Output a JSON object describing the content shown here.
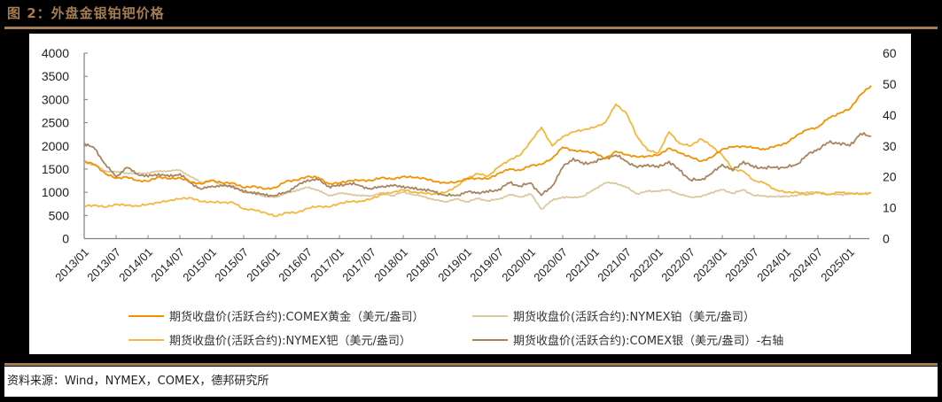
{
  "header": {
    "title": "图 2：外盘金银铂钯价格"
  },
  "footer": {
    "source": "资料来源：Wind，NYMEX，COMEX，德邦研究所"
  },
  "colors": {
    "gold": "#F39200",
    "platinum": "#DCC8A0",
    "palladium": "#F5B73B",
    "silver": "#A8855E",
    "accent": "#A67C52"
  },
  "chart_data": {
    "type": "line",
    "title": "外盘金银铂钯价格",
    "xlabel": "",
    "ylabel": "",
    "ylim": [
      0,
      4000
    ],
    "y2lim": [
      0,
      60
    ],
    "left_ticks": [
      "0",
      "500",
      "1000",
      "1500",
      "2000",
      "2500",
      "3000",
      "3500",
      "4000"
    ],
    "right_ticks": [
      "0",
      "10",
      "20",
      "30",
      "40",
      "50",
      "60"
    ],
    "x_tick_labels": [
      "2013/01",
      "2013/07",
      "2014/01",
      "2014/07",
      "2015/01",
      "2015/07",
      "2016/01",
      "2016/07",
      "2017/01",
      "2017/07",
      "2018/01",
      "2018/07",
      "2019/01",
      "2019/07",
      "2020/01",
      "2020/07",
      "2021/01",
      "2021/07",
      "2022/01",
      "2022/07",
      "2023/01",
      "2023/07",
      "2024/01",
      "2024/07",
      "2025/01"
    ],
    "grid": false,
    "legend_position": "bottom",
    "x": [
      "2013/01",
      "2013/03",
      "2013/05",
      "2013/07",
      "2013/09",
      "2013/11",
      "2014/01",
      "2014/03",
      "2014/05",
      "2014/07",
      "2014/09",
      "2014/11",
      "2015/01",
      "2015/03",
      "2015/05",
      "2015/07",
      "2015/09",
      "2015/11",
      "2016/01",
      "2016/03",
      "2016/05",
      "2016/07",
      "2016/09",
      "2016/11",
      "2017/01",
      "2017/03",
      "2017/05",
      "2017/07",
      "2017/09",
      "2017/11",
      "2018/01",
      "2018/03",
      "2018/05",
      "2018/07",
      "2018/09",
      "2018/11",
      "2019/01",
      "2019/03",
      "2019/05",
      "2019/07",
      "2019/09",
      "2019/11",
      "2020/01",
      "2020/03",
      "2020/05",
      "2020/07",
      "2020/09",
      "2020/11",
      "2021/01",
      "2021/03",
      "2021/05",
      "2021/07",
      "2021/09",
      "2021/11",
      "2022/01",
      "2022/03",
      "2022/05",
      "2022/07",
      "2022/09",
      "2022/11",
      "2023/01",
      "2023/03",
      "2023/05",
      "2023/07",
      "2023/09",
      "2023/11",
      "2024/01",
      "2024/03",
      "2024/05",
      "2024/07",
      "2024/09",
      "2024/11",
      "2025/01",
      "2025/03",
      "2025/05"
    ],
    "series": [
      {
        "name": "期货收盘价(活跃合约):COMEX黄金（美元/盎司）",
        "axis": "left",
        "color": "#F39200",
        "values": [
          1670,
          1600,
          1400,
          1300,
          1330,
          1250,
          1240,
          1330,
          1290,
          1310,
          1220,
          1180,
          1260,
          1200,
          1200,
          1100,
          1130,
          1070,
          1100,
          1240,
          1260,
          1340,
          1320,
          1180,
          1200,
          1250,
          1260,
          1250,
          1320,
          1280,
          1340,
          1320,
          1300,
          1230,
          1200,
          1220,
          1290,
          1300,
          1290,
          1410,
          1500,
          1470,
          1580,
          1600,
          1730,
          1970,
          1900,
          1880,
          1850,
          1720,
          1880,
          1810,
          1760,
          1780,
          1800,
          1950,
          1850,
          1760,
          1670,
          1750,
          1930,
          1980,
          1990,
          1960,
          1920,
          2000,
          2050,
          2230,
          2350,
          2400,
          2600,
          2700,
          2800,
          3100,
          3300
        ]
      },
      {
        "name": "期货收盘价(活跃合约):NYMEX铂（美元/盎司）",
        "axis": "left",
        "color": "#DCC8A0",
        "values": [
          1650,
          1580,
          1460,
          1430,
          1420,
          1400,
          1420,
          1450,
          1460,
          1480,
          1330,
          1220,
          1250,
          1150,
          1130,
          1000,
          1000,
          900,
          900,
          970,
          1050,
          1100,
          1050,
          920,
          980,
          960,
          920,
          930,
          980,
          930,
          1000,
          950,
          900,
          830,
          800,
          850,
          800,
          860,
          820,
          850,
          950,
          900,
          960,
          640,
          820,
          900,
          880,
          920,
          1070,
          1200,
          1200,
          1100,
          970,
          1020,
          1030,
          1050,
          950,
          900,
          900,
          1000,
          1050,
          980,
          1050,
          930,
          920,
          900,
          920,
          920,
          1010,
          980,
          960,
          950,
          960,
          980,
          980
        ]
      },
      {
        "name": "期货收盘价(活跃合约):NYMEX钯（美元/盎司）",
        "axis": "left",
        "color": "#F5B73B",
        "values": [
          700,
          720,
          680,
          740,
          720,
          700,
          740,
          780,
          820,
          860,
          880,
          800,
          790,
          780,
          780,
          640,
          620,
          560,
          480,
          560,
          560,
          650,
          700,
          680,
          760,
          800,
          800,
          860,
          950,
          1000,
          1050,
          1000,
          980,
          960,
          1000,
          1120,
          1300,
          1400,
          1350,
          1550,
          1700,
          1800,
          2100,
          2400,
          2000,
          2200,
          2300,
          2350,
          2400,
          2500,
          2900,
          2700,
          2200,
          1900,
          1850,
          2300,
          2050,
          2000,
          2150,
          2000,
          1800,
          1500,
          1450,
          1250,
          1200,
          1050,
          1000,
          1000,
          950,
          1000,
          950,
          1000,
          980,
          960,
          980
        ]
      },
      {
        "name": "期货收盘价(活跃合约):COMEX银（美元/盎司）-右轴",
        "axis": "right",
        "color": "#A8855E",
        "values": [
          31,
          29,
          24,
          20,
          23,
          21,
          20,
          21,
          20,
          21,
          18,
          16,
          17,
          17,
          17,
          15,
          15,
          14,
          14,
          15,
          17,
          19,
          19,
          17,
          17,
          18,
          17,
          16,
          17,
          17,
          17,
          16,
          16,
          15,
          14,
          14,
          15,
          15,
          15,
          16,
          18,
          17,
          18,
          14,
          17,
          23,
          26,
          24,
          25,
          26,
          27,
          25,
          23,
          24,
          23,
          25,
          22,
          19,
          19,
          21,
          24,
          22,
          25,
          23,
          23,
          23,
          23,
          24,
          27,
          29,
          31,
          31,
          30,
          34,
          33
        ]
      }
    ]
  },
  "legend": [
    {
      "label": "期货收盘价(活跃合约):COMEX黄金（美元/盎司）",
      "color": "#F39200"
    },
    {
      "label": "期货收盘价(活跃合约):NYMEX铂（美元/盎司）",
      "color": "#DCC8A0"
    },
    {
      "label": "期货收盘价(活跃合约):NYMEX钯（美元/盎司）",
      "color": "#F5B73B"
    },
    {
      "label": "期货收盘价(活跃合约):COMEX银（美元/盎司）-右轴",
      "color": "#A8855E"
    }
  ]
}
